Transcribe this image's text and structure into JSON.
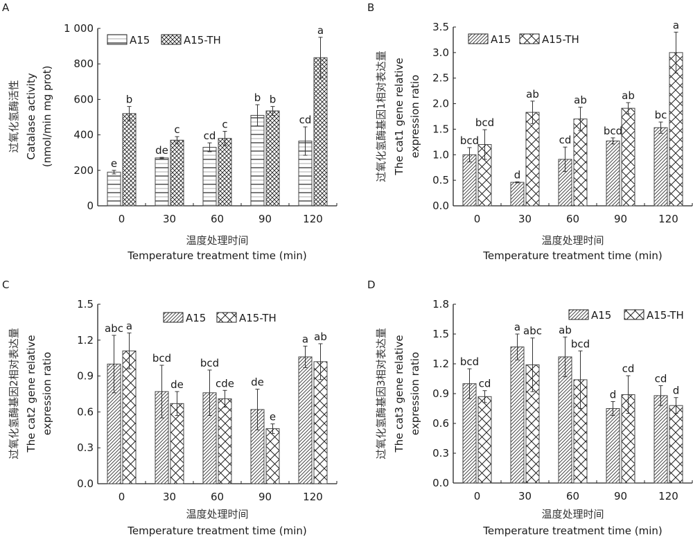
{
  "figure": {
    "panels": [
      "A",
      "B",
      "C",
      "D"
    ]
  },
  "chart_data": [
    {
      "id": "A",
      "type": "bar",
      "panel_label": "A",
      "title": "",
      "categories": [
        "0",
        "30",
        "60",
        "90",
        "120"
      ],
      "xlabel_cn": "温度处理时间",
      "xlabel": "Temperature treatment time (min)",
      "ylabel_lines": [
        "过氧化氢酶活性",
        "Catalase activity",
        "(nmol/min mg prot)"
      ],
      "ylim": [
        0,
        1000
      ],
      "yticks": [
        0,
        200,
        400,
        600,
        800,
        1000
      ],
      "ytick_labels": [
        "0",
        "200",
        "400",
        "600",
        "800",
        "1 000"
      ],
      "legend": [
        "A15",
        "A15-TH"
      ],
      "legend_position": "top-left",
      "grid": false,
      "series": [
        {
          "name": "A15",
          "pattern": "horizontal-lines",
          "values": [
            190,
            270,
            330,
            510,
            365
          ],
          "errors": [
            10,
            3,
            25,
            60,
            80
          ],
          "sig": [
            "e",
            "de",
            "cd",
            "b",
            "cd"
          ]
        },
        {
          "name": "A15-TH",
          "pattern": "crosshatch-fine",
          "values": [
            520,
            370,
            380,
            535,
            835
          ],
          "errors": [
            40,
            20,
            40,
            25,
            115
          ],
          "sig": [
            "b",
            "c",
            "c",
            "b",
            "a"
          ]
        }
      ]
    },
    {
      "id": "B",
      "type": "bar",
      "panel_label": "B",
      "title": "",
      "categories": [
        "0",
        "30",
        "60",
        "90",
        "120"
      ],
      "xlabel_cn": "温度处理时间",
      "xlabel": "Temperature treatment time (min)",
      "ylabel_lines": [
        "过氧化氢酶基因1相对表达量",
        "The cat1 gene relative",
        "expression ratio"
      ],
      "ylim": [
        0,
        3.5
      ],
      "yticks": [
        0,
        0.5,
        1.0,
        1.5,
        2.0,
        2.5,
        3.0,
        3.5
      ],
      "ytick_labels": [
        "0.0",
        "0.5",
        "1.0",
        "1.5",
        "2.0",
        "2.5",
        "3.0",
        "3.5"
      ],
      "legend": [
        "A15",
        "A15-TH"
      ],
      "legend_position": "top-left",
      "grid": false,
      "series": [
        {
          "name": "A15",
          "pattern": "diagonal",
          "values": [
            1.0,
            0.46,
            0.91,
            1.27,
            1.53
          ],
          "errors": [
            0.14,
            0.01,
            0.24,
            0.06,
            0.11
          ],
          "sig": [
            "bcd",
            "d",
            "cd",
            "bcd",
            "bc"
          ]
        },
        {
          "name": "A15-TH",
          "pattern": "crosshatch-wide",
          "values": [
            1.2,
            1.83,
            1.7,
            1.91,
            3.0
          ],
          "errors": [
            0.29,
            0.22,
            0.23,
            0.11,
            0.4
          ],
          "sig": [
            "bcd",
            "ab",
            "ab",
            "ab",
            "a"
          ]
        }
      ]
    },
    {
      "id": "C",
      "type": "bar",
      "panel_label": "C",
      "title": "",
      "categories": [
        "0",
        "30",
        "60",
        "90",
        "120"
      ],
      "xlabel_cn": "温度处理时间",
      "xlabel": "Temperature treatment time (min)",
      "ylabel_lines": [
        "过氧化氢酶基因2相对表达量",
        "The cat2 gene relative",
        "expression ratio"
      ],
      "ylim": [
        0,
        1.5
      ],
      "yticks": [
        0,
        0.3,
        0.6,
        0.9,
        1.2,
        1.5
      ],
      "ytick_labels": [
        "0.0",
        "0.3",
        "0.6",
        "0.9",
        "1.2",
        "1.5"
      ],
      "legend": [
        "A15",
        "A15-TH"
      ],
      "legend_position": "top-center",
      "grid": false,
      "series": [
        {
          "name": "A15",
          "pattern": "diagonal",
          "values": [
            1.0,
            0.77,
            0.76,
            0.62,
            1.06
          ],
          "errors": [
            0.24,
            0.22,
            0.19,
            0.17,
            0.09
          ],
          "sig": [
            "abc",
            "bcd",
            "bcd",
            "de",
            "a"
          ]
        },
        {
          "name": "A15-TH",
          "pattern": "crosshatch-wide",
          "values": [
            1.11,
            0.67,
            0.71,
            0.46,
            1.02
          ],
          "errors": [
            0.15,
            0.1,
            0.07,
            0.04,
            0.15
          ],
          "sig": [
            "a",
            "de",
            "cde",
            "e",
            "ab"
          ]
        }
      ]
    },
    {
      "id": "D",
      "type": "bar",
      "panel_label": "D",
      "title": "",
      "categories": [
        "0",
        "30",
        "60",
        "90",
        "120"
      ],
      "xlabel_cn": "温度处理时间",
      "xlabel": "Temperature treatment time (min)",
      "ylabel_lines": [
        "过氧化氢酶基因3相对表达量",
        "The cat3 gene relative",
        "expression ratio"
      ],
      "ylim": [
        0,
        1.8
      ],
      "yticks": [
        0,
        0.3,
        0.6,
        0.9,
        1.2,
        1.5,
        1.8
      ],
      "ytick_labels": [
        "0.0",
        "0.3",
        "0.6",
        "0.9",
        "1.2",
        "1.5",
        "1.8"
      ],
      "legend": [
        "A15",
        "A15-TH"
      ],
      "legend_position": "top-right",
      "grid": false,
      "series": [
        {
          "name": "A15",
          "pattern": "diagonal",
          "values": [
            1.0,
            1.37,
            1.27,
            0.75,
            0.88
          ],
          "errors": [
            0.15,
            0.13,
            0.2,
            0.07,
            0.1
          ],
          "sig": [
            "bcd",
            "a",
            "ab",
            "d",
            "cd"
          ]
        },
        {
          "name": "A15-TH",
          "pattern": "crosshatch-wide",
          "values": [
            0.87,
            1.19,
            1.04,
            0.89,
            0.78
          ],
          "errors": [
            0.06,
            0.27,
            0.29,
            0.19,
            0.08
          ],
          "sig": [
            "cd",
            "abc",
            "bcd",
            "cd",
            "d"
          ]
        }
      ]
    }
  ]
}
